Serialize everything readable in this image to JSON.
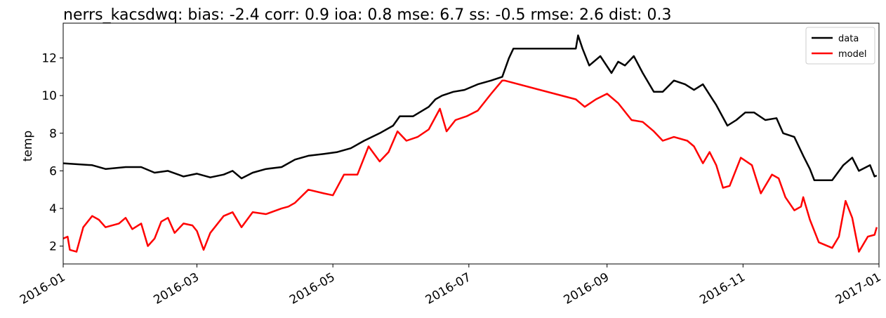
{
  "chart_data": {
    "type": "line",
    "title": "nerrs_kacsdwq: bias: -2.4  corr: 0.9  ioa: 0.8  mse: 6.7  ss: -0.5  rmse: 2.6  dist: 0.3",
    "y_label": "temp",
    "series": [
      {
        "name": "data",
        "color": "#000000",
        "x": [
          0,
          13,
          19,
          28,
          35,
          41,
          47,
          54,
          60,
          66,
          72,
          76,
          80,
          85,
          91,
          98,
          104,
          110,
          117,
          123,
          129,
          135,
          142,
          148,
          151,
          157,
          164,
          167,
          170,
          175,
          180,
          186,
          192,
          197,
          200,
          202,
          230,
          231,
          233,
          236,
          241,
          246,
          249,
          252,
          256,
          260,
          265,
          269,
          274,
          279,
          283,
          287,
          293,
          298,
          302,
          306,
          310,
          315,
          320,
          323,
          328,
          332,
          335,
          337,
          345,
          350,
          354,
          357,
          362,
          364,
          365
        ],
        "values": [
          6.4,
          6.3,
          6.1,
          6.2,
          6.2,
          5.9,
          6.0,
          5.7,
          5.85,
          5.65,
          5.8,
          6.0,
          5.6,
          5.9,
          6.1,
          6.2,
          6.6,
          6.8,
          6.9,
          7.0,
          7.2,
          7.6,
          8.0,
          8.4,
          8.9,
          8.9,
          9.4,
          9.8,
          10.0,
          10.2,
          10.3,
          10.6,
          10.8,
          11.0,
          12.0,
          12.5,
          12.5,
          13.2,
          12.5,
          11.6,
          12.1,
          11.2,
          11.8,
          11.6,
          12.1,
          11.2,
          10.2,
          10.2,
          10.8,
          10.6,
          10.3,
          10.6,
          9.5,
          8.4,
          8.7,
          9.1,
          9.1,
          8.7,
          8.8,
          8.0,
          7.8,
          6.8,
          6.1,
          5.5,
          5.5,
          6.3,
          6.7,
          6.0,
          6.3,
          5.7,
          5.75
        ]
      },
      {
        "name": "model",
        "color": "#ff0000",
        "x": [
          0,
          2,
          3,
          6,
          9,
          13,
          16,
          19,
          25,
          28,
          31,
          35,
          38,
          41,
          44,
          47,
          50,
          54,
          58,
          60,
          63,
          66,
          72,
          76,
          80,
          85,
          91,
          98,
          101,
          104,
          110,
          117,
          121,
          126,
          132,
          137,
          142,
          146,
          150,
          154,
          159,
          164,
          169,
          172,
          176,
          181,
          186,
          192,
          197,
          198,
          230,
          234,
          239,
          244,
          249,
          255,
          260,
          265,
          269,
          274,
          280,
          283,
          287,
          290,
          293,
          296,
          299,
          304,
          309,
          313,
          318,
          321,
          324,
          328,
          331,
          332,
          335,
          339,
          345,
          348,
          351,
          354,
          357,
          361,
          364,
          365
        ],
        "values": [
          2.4,
          2.5,
          1.8,
          1.7,
          3.0,
          3.6,
          3.4,
          3.0,
          3.2,
          3.5,
          2.9,
          3.2,
          2.0,
          2.4,
          3.3,
          3.5,
          2.7,
          3.2,
          3.1,
          2.8,
          1.8,
          2.7,
          3.6,
          3.8,
          3.0,
          3.8,
          3.7,
          4.0,
          4.1,
          4.3,
          5.0,
          4.8,
          4.7,
          5.8,
          5.8,
          7.3,
          6.5,
          7.0,
          8.1,
          7.6,
          7.8,
          8.2,
          9.3,
          8.1,
          8.7,
          8.9,
          9.2,
          10.1,
          10.8,
          10.8,
          9.8,
          9.4,
          9.8,
          10.1,
          9.6,
          8.7,
          8.6,
          8.1,
          7.6,
          7.8,
          7.6,
          7.3,
          6.4,
          7.0,
          6.3,
          5.1,
          5.2,
          6.7,
          6.3,
          4.8,
          5.8,
          5.6,
          4.6,
          3.9,
          4.1,
          4.6,
          3.4,
          2.2,
          1.9,
          2.5,
          4.4,
          3.5,
          1.7,
          2.5,
          2.6,
          3.0
        ]
      }
    ],
    "xlim": [
      0,
      366
    ],
    "xticks": [
      {
        "value": 0,
        "label": "2016-01"
      },
      {
        "value": 60,
        "label": "2016-03"
      },
      {
        "value": 121,
        "label": "2016-05"
      },
      {
        "value": 182,
        "label": "2016-07"
      },
      {
        "value": 244,
        "label": "2016-09"
      },
      {
        "value": 305,
        "label": "2016-11"
      },
      {
        "value": 366,
        "label": "2017-01"
      }
    ],
    "ylim": [
      1.05,
      13.85
    ],
    "yticks": [
      2,
      4,
      6,
      8,
      10,
      12
    ],
    "legend": "upper-right"
  }
}
